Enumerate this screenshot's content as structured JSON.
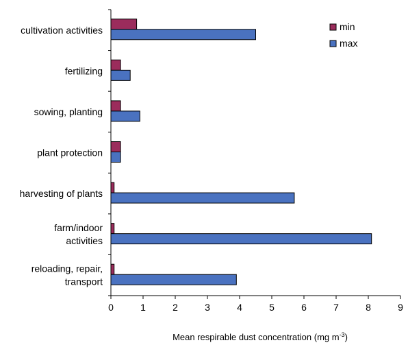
{
  "chart_data": {
    "type": "bar",
    "orientation": "horizontal",
    "categories": [
      [
        "cultivation activities"
      ],
      [
        "fertilizing"
      ],
      [
        "sowing, planting"
      ],
      [
        "plant protection"
      ],
      [
        "harvesting of plants"
      ],
      [
        "farm/indoor",
        "activities"
      ],
      [
        "reloading, repair,",
        "transport"
      ]
    ],
    "series": [
      {
        "name": "min",
        "color": "#9b2c5c",
        "values": [
          0.8,
          0.3,
          0.3,
          0.3,
          0.1,
          0.1,
          0.1
        ]
      },
      {
        "name": "max",
        "color": "#4a72c0",
        "values": [
          4.5,
          0.6,
          0.9,
          0.3,
          5.7,
          8.1,
          3.9
        ]
      }
    ],
    "xlabel": "Mean respirable dust concentration (mg m",
    "xlabel_superscript": "-3",
    "xlabel_suffix": ")",
    "xlim": [
      0,
      9
    ],
    "xticks": [
      "0",
      "1",
      "2",
      "3",
      "4",
      "5",
      "6",
      "7",
      "8",
      "9"
    ],
    "grid": false,
    "legend_position": "top-right"
  }
}
